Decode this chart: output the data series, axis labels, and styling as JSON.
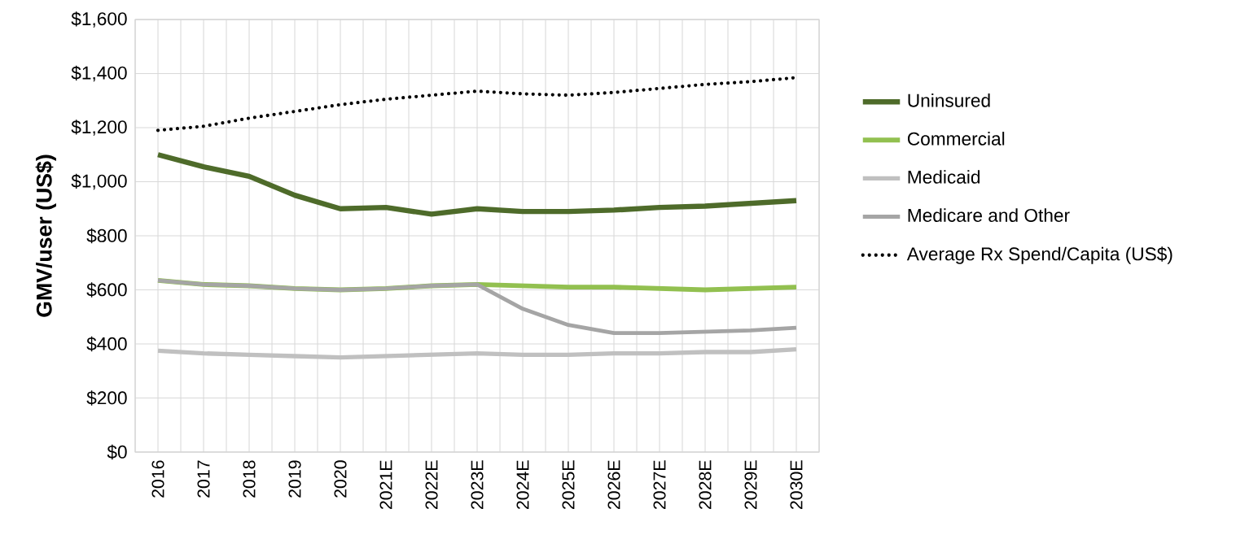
{
  "chart_data": {
    "type": "line",
    "ylabel": "GMV/user (US$)",
    "categories": [
      "2016",
      "2017",
      "2018",
      "2019",
      "2020",
      "2021E",
      "2022E",
      "2023E",
      "2024E",
      "2025E",
      "2026E",
      "2027E",
      "2028E",
      "2029E",
      "2030E"
    ],
    "series": [
      {
        "name": "Uninsured",
        "color": "#4e6b2a",
        "line_style": "solid",
        "values": [
          1100,
          1055,
          1020,
          950,
          900,
          905,
          880,
          900,
          890,
          890,
          895,
          905,
          910,
          920,
          930
        ]
      },
      {
        "name": "Commercial",
        "color": "#92c050",
        "line_style": "solid",
        "values": [
          635,
          620,
          615,
          605,
          600,
          605,
          615,
          620,
          615,
          610,
          610,
          605,
          600,
          605,
          610
        ]
      },
      {
        "name": "Medicaid",
        "color": "#c0c0c0",
        "line_style": "solid",
        "values": [
          375,
          365,
          360,
          355,
          350,
          355,
          360,
          365,
          360,
          360,
          365,
          365,
          370,
          370,
          380
        ]
      },
      {
        "name": "Medicare and Other",
        "color": "#a5a5a5",
        "line_style": "solid",
        "values": [
          635,
          620,
          615,
          605,
          600,
          605,
          615,
          620,
          530,
          470,
          440,
          440,
          445,
          450,
          460
        ]
      },
      {
        "name": "Average Rx Spend/Capita (US$)",
        "color": "#000000",
        "line_style": "dotted",
        "values": [
          1190,
          1205,
          1235,
          1260,
          1285,
          1305,
          1320,
          1335,
          1325,
          1320,
          1330,
          1345,
          1360,
          1370,
          1385
        ]
      }
    ],
    "ylim": [
      0,
      1600
    ],
    "yticks": [
      {
        "value": 0,
        "label": "$0"
      },
      {
        "value": 200,
        "label": "$200"
      },
      {
        "value": 400,
        "label": "$400"
      },
      {
        "value": 600,
        "label": "$600"
      },
      {
        "value": 800,
        "label": "$800"
      },
      {
        "value": 1000,
        "label": "$1,000"
      },
      {
        "value": 1200,
        "label": "$1,200"
      },
      {
        "value": 1400,
        "label": "$1,400"
      },
      {
        "value": 1600,
        "label": "$1,600"
      }
    ],
    "grid": true,
    "legend": "right",
    "marker": "none"
  }
}
